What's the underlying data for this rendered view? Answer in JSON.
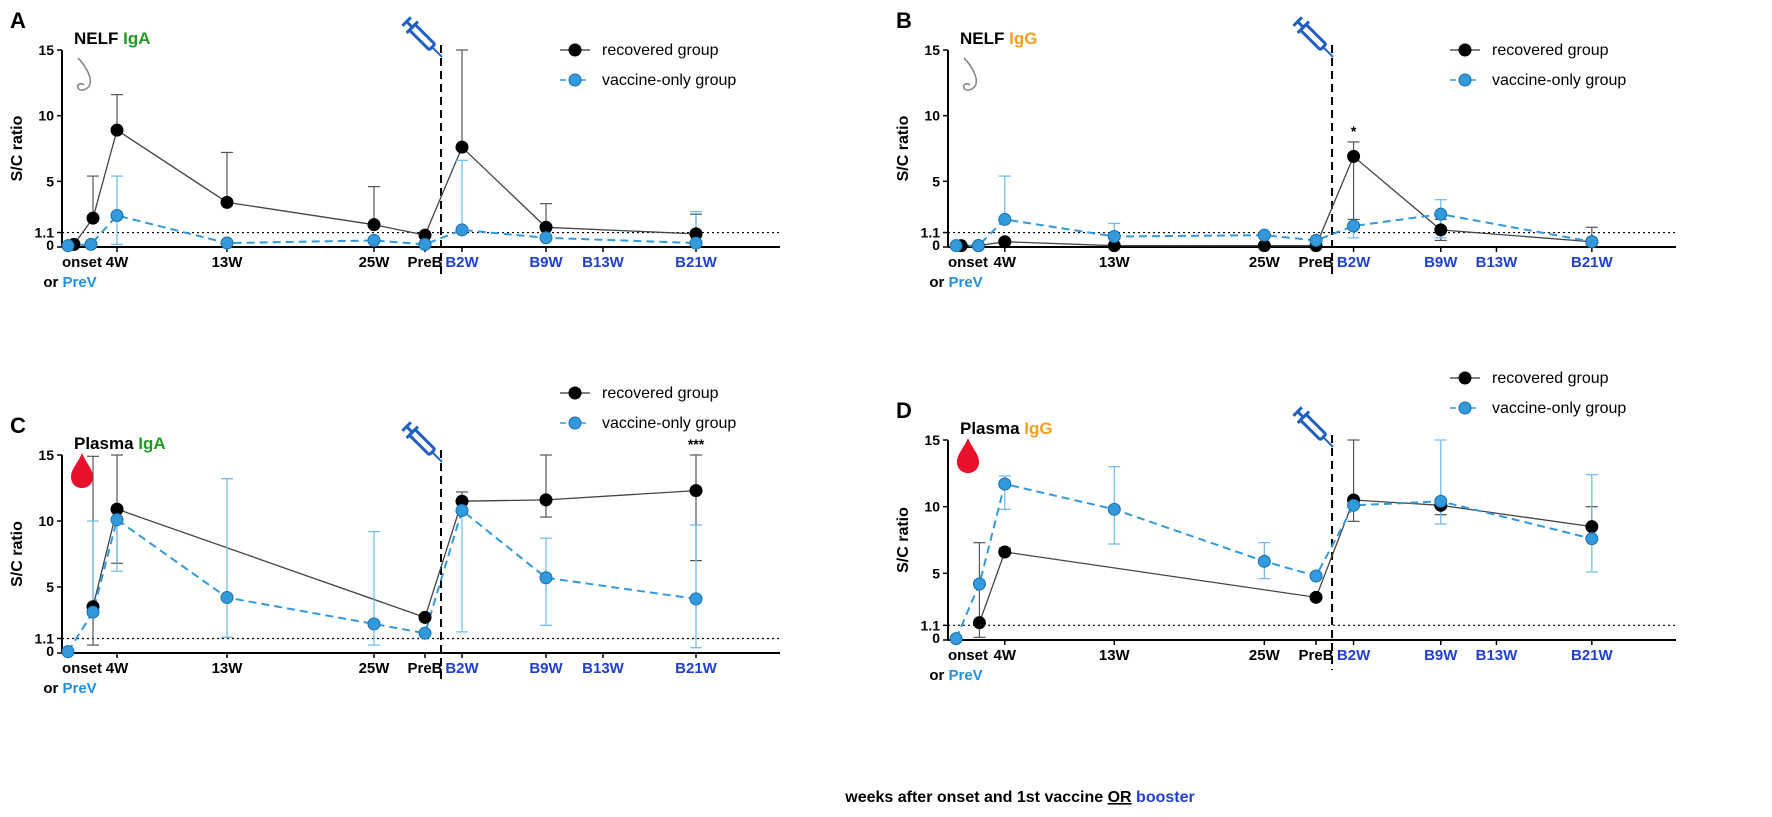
{
  "chart_data": [
    {
      "panel": "A",
      "type": "line",
      "title": "NELF",
      "title_iso": "IgA",
      "ylabel": "S/C ratio",
      "ylim": [
        0,
        15
      ],
      "yticks": [
        0,
        1.1,
        5,
        10,
        15
      ],
      "threshold": 1.1,
      "x_ticks": [
        {
          "label": "onset",
          "label2": "or",
          "label3": "PreV"
        },
        {
          "label": "4W"
        },
        {
          "label": "13W"
        },
        {
          "label": "25W"
        },
        {
          "label": "PreB"
        },
        {
          "label": "B2W"
        },
        {
          "label": "B9W"
        },
        {
          "label": "B13W"
        },
        {
          "label": "B21W"
        }
      ],
      "icon": "nose",
      "series": [
        {
          "name": "recovered group",
          "style": "solid",
          "color": "#000000",
          "x": [
            0,
            1.2,
            2.5,
            6.5,
            13,
            23.5,
            25,
            34,
            43.5
          ],
          "y": [
            0.2,
            2.2,
            8.9,
            3.4,
            1.7,
            0.9,
            7.6,
            1.5,
            1.0
          ],
          "upper": [
            null,
            5.4,
            11.6,
            7.2,
            4.6,
            null,
            15,
            3.3,
            2.5
          ]
        },
        {
          "name": "vaccine-only group",
          "style": "dashed",
          "color": "#3399dd",
          "x": [
            -0.5,
            1.0,
            2.5,
            6.5,
            13,
            23.5,
            25,
            34,
            43.5
          ],
          "y": [
            0.1,
            0.2,
            2.4,
            0.3,
            0.5,
            0.2,
            1.3,
            0.7,
            0.3
          ],
          "upper": [
            null,
            null,
            5.4,
            null,
            null,
            null,
            6.6,
            null,
            2.7
          ],
          "lower": [
            null,
            null,
            0.2,
            null,
            null,
            null,
            null,
            null,
            null
          ]
        }
      ],
      "significance": [],
      "legend": [
        "recovered group",
        "vaccine-only group"
      ]
    },
    {
      "panel": "B",
      "type": "line",
      "title": "NELF",
      "title_iso": "IgG",
      "ylabel": "S/C ratio",
      "ylim": [
        0,
        15
      ],
      "yticks": [
        0,
        1.1,
        5,
        10,
        15
      ],
      "threshold": 1.1,
      "x_ticks": [
        {
          "label": "onset",
          "label2": "or",
          "label3": "PreV"
        },
        {
          "label": "4W"
        },
        {
          "label": "13W"
        },
        {
          "label": "25W"
        },
        {
          "label": "PreB"
        },
        {
          "label": "B2W"
        },
        {
          "label": "B9W"
        },
        {
          "label": "B13W"
        },
        {
          "label": "B21W"
        }
      ],
      "icon": "nose",
      "series": [
        {
          "name": "recovered group",
          "style": "solid",
          "color": "#000000",
          "x": [
            0,
            1.0,
            2.5,
            6.5,
            13,
            23.5,
            25,
            34,
            43.5
          ],
          "y": [
            0.1,
            0.1,
            0.4,
            0.1,
            0.1,
            0.1,
            6.9,
            1.3,
            0.4
          ],
          "upper": [
            null,
            null,
            null,
            null,
            null,
            null,
            8.0,
            2.1,
            1.5
          ],
          "lower": [
            null,
            null,
            null,
            null,
            null,
            null,
            2.1,
            0.5,
            null
          ]
        },
        {
          "name": "vaccine-only group",
          "style": "dashed",
          "color": "#3399dd",
          "x": [
            -0.5,
            1.0,
            2.5,
            6.5,
            13,
            23.5,
            25,
            34,
            43.5
          ],
          "y": [
            0.1,
            0.1,
            2.1,
            0.8,
            0.9,
            0.5,
            1.6,
            2.5,
            0.4
          ],
          "upper": [
            null,
            null,
            5.4,
            1.8,
            null,
            null,
            null,
            3.6,
            null
          ],
          "lower": [
            null,
            null,
            null,
            null,
            null,
            null,
            0.7,
            0.7,
            null
          ]
        }
      ],
      "significance": [
        {
          "x": 25,
          "label": "*"
        }
      ],
      "legend": [
        "recovered group",
        "vaccine-only group"
      ]
    },
    {
      "panel": "C",
      "type": "line",
      "title": "Plasma",
      "title_iso": "IgA",
      "ylabel": "S/C ratio",
      "ylim": [
        0,
        15
      ],
      "yticks": [
        0,
        1.1,
        5,
        10,
        15
      ],
      "threshold": 1.1,
      "x_ticks": [
        {
          "label": "onset",
          "label2": "or",
          "label3": "PreV"
        },
        {
          "label": "4W"
        },
        {
          "label": "13W"
        },
        {
          "label": "25W"
        },
        {
          "label": "PreB"
        },
        {
          "label": "B2W"
        },
        {
          "label": "B9W"
        },
        {
          "label": "B13W"
        },
        {
          "label": "B21W"
        }
      ],
      "icon": "blood-drop",
      "series": [
        {
          "name": "recovered group",
          "style": "solid",
          "color": "#000000",
          "x": [
            1.2,
            2.5,
            23.5,
            25,
            34,
            43.5
          ],
          "y": [
            3.5,
            10.9,
            2.7,
            11.5,
            11.6,
            12.3
          ],
          "upper": [
            14.9,
            15,
            null,
            12.2,
            15,
            15
          ],
          "lower": [
            0.6,
            6.8,
            null,
            null,
            10.3,
            7.0
          ]
        },
        {
          "name": "vaccine-only group",
          "style": "dashed",
          "color": "#3399dd",
          "x": [
            -0.5,
            1.2,
            2.5,
            6.5,
            13,
            23.5,
            25,
            34,
            43.5
          ],
          "y": [
            0.1,
            3.1,
            10.1,
            4.2,
            2.2,
            1.5,
            10.8,
            5.7,
            4.1
          ],
          "upper": [
            null,
            10.0,
            null,
            13.2,
            9.2,
            null,
            null,
            8.7,
            9.7
          ],
          "lower": [
            null,
            null,
            6.2,
            1.2,
            0.6,
            null,
            1.6,
            2.1,
            0.4
          ]
        }
      ],
      "significance": [
        {
          "x": 43.5,
          "label": "***"
        }
      ],
      "legend": [
        "recovered group",
        "vaccine-only group"
      ]
    },
    {
      "panel": "D",
      "type": "line",
      "title": "Plasma",
      "title_iso": "IgG",
      "ylabel": "S/C ratio",
      "ylim": [
        0,
        15
      ],
      "yticks": [
        0,
        1.1,
        5,
        10,
        15
      ],
      "threshold": 1.1,
      "x_ticks": [
        {
          "label": "onset",
          "label2": "or",
          "label3": "PreV"
        },
        {
          "label": "4W"
        },
        {
          "label": "13W"
        },
        {
          "label": "25W"
        },
        {
          "label": "PreB"
        },
        {
          "label": "B2W"
        },
        {
          "label": "B9W"
        },
        {
          "label": "B13W"
        },
        {
          "label": "B21W"
        }
      ],
      "icon": "blood-drop",
      "series": [
        {
          "name": "recovered group",
          "style": "solid",
          "color": "#000000",
          "x": [
            1.2,
            2.5,
            23.5,
            25,
            34,
            43.5
          ],
          "y": [
            1.3,
            6.6,
            3.2,
            10.5,
            10.1,
            8.5
          ],
          "upper": [
            7.3,
            6.9,
            null,
            15,
            null,
            10.0
          ],
          "lower": [
            0.2,
            null,
            null,
            8.9,
            9.4,
            null
          ]
        },
        {
          "name": "vaccine-only group",
          "style": "dashed",
          "color": "#3399dd",
          "x": [
            -0.5,
            1.2,
            2.5,
            6.5,
            13,
            23.5,
            25,
            34,
            43.5
          ],
          "y": [
            0.1,
            4.2,
            11.7,
            9.8,
            5.9,
            4.8,
            10.1,
            10.4,
            7.6
          ],
          "upper": [
            null,
            null,
            12.3,
            13.0,
            7.3,
            null,
            null,
            15,
            12.4
          ],
          "lower": [
            null,
            null,
            9.8,
            7.2,
            4.6,
            null,
            null,
            8.7,
            5.1
          ]
        }
      ],
      "significance": [],
      "legend": [
        "recovered group",
        "vaccine-only group"
      ]
    }
  ],
  "xlabel": {
    "part1": "weeks after onset and 1st vaccine ",
    "part2": "OR",
    "part3": " booster"
  },
  "colors": {
    "recovered": "#000000",
    "vaccine_only": "#3399dd",
    "iga": "#229922",
    "igg": "#f5a020",
    "booster_label": "#2040d0",
    "prev_label": "#2090e0",
    "syringe": "#2060c0",
    "blood": "#e8102a",
    "nose": "#888888"
  }
}
